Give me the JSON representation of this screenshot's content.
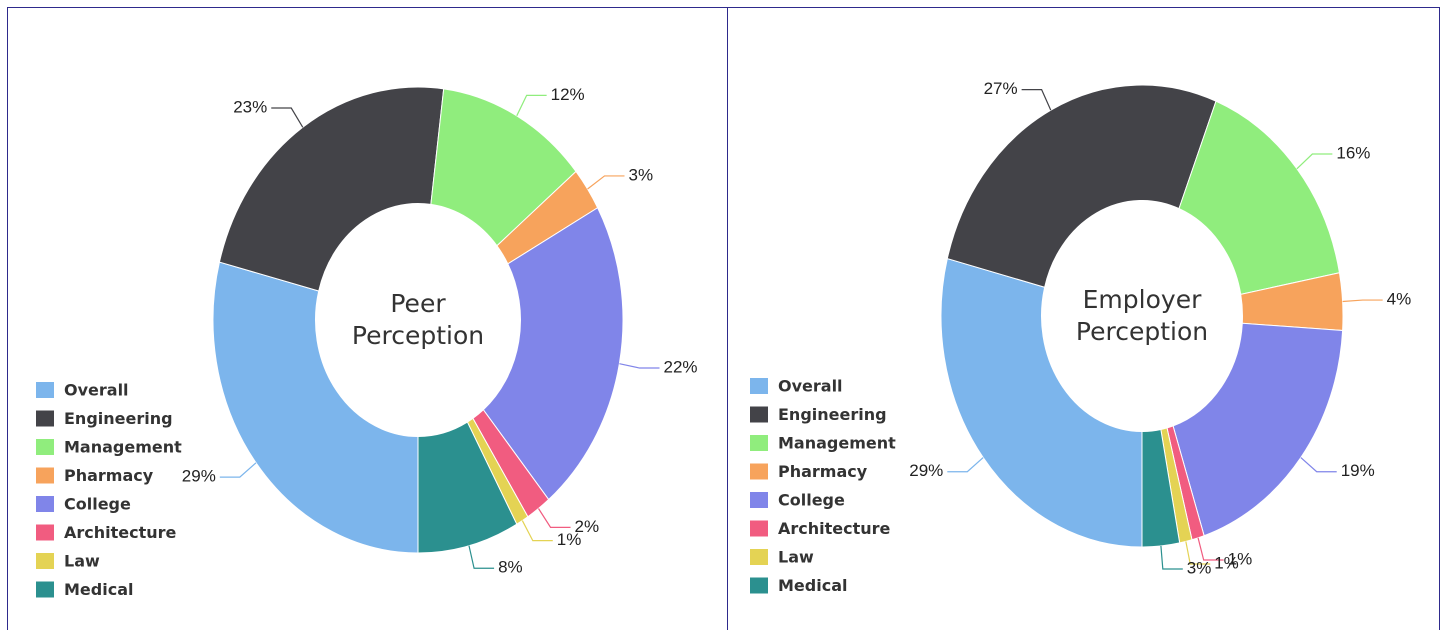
{
  "chart_data": [
    {
      "type": "donut",
      "title": "Peer Perception",
      "categories": [
        "Overall",
        "Engineering",
        "Management",
        "Pharmacy",
        "College",
        "Architecture",
        "Law",
        "Medical"
      ],
      "values": [
        29,
        23,
        12,
        3,
        22,
        2,
        1,
        8
      ],
      "value_labels": [
        "29%",
        "23%",
        "12%",
        "3%",
        "22%",
        "2%",
        "1%",
        "8%"
      ],
      "colors": [
        "#7cb5ec",
        "#434348",
        "#90ed7d",
        "#f7a35c",
        "#8085e9",
        "#f15c80",
        "#e4d354",
        "#2b908f"
      ],
      "legend": "bottom-left"
    },
    {
      "type": "donut",
      "title": "Employer Perception",
      "categories": [
        "Overall",
        "Engineering",
        "Management",
        "Pharmacy",
        "College",
        "Architecture",
        "Law",
        "Medical"
      ],
      "values": [
        29,
        27,
        16,
        4,
        19,
        1,
        1,
        3
      ],
      "value_labels": [
        "29%",
        "27%",
        "16%",
        "4%",
        "19%",
        "1%",
        "1%",
        "3%"
      ],
      "colors": [
        "#7cb5ec",
        "#434348",
        "#90ed7d",
        "#f7a35c",
        "#8085e9",
        "#f15c80",
        "#e4d354",
        "#2b908f"
      ],
      "legend": "bottom-left"
    }
  ]
}
